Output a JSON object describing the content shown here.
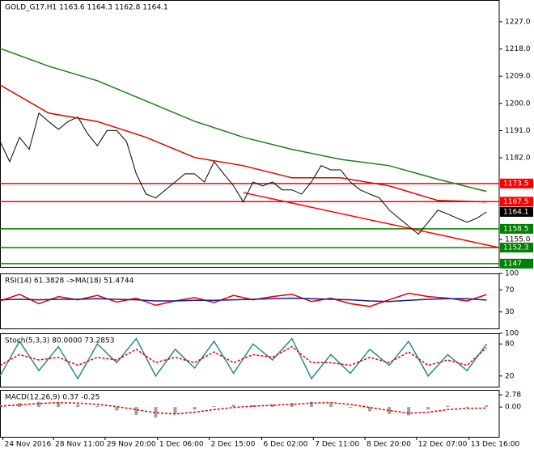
{
  "chart_data": [
    {
      "type": "line",
      "title": "GOLD_G17,H1 1163.6 1164.3 1162.8 1164.1",
      "xlim": [
        0,
        51.3
      ],
      "ylim": [
        1145.9,
        1234.2
      ],
      "yticks": [
        {
          "value": 1227,
          "label": "1227.0"
        },
        {
          "value": 1218,
          "label": "1218.0"
        },
        {
          "value": 1209,
          "label": "1209.0"
        },
        {
          "value": 1200,
          "label": "1200.0"
        },
        {
          "value": 1191,
          "label": "1191.0"
        },
        {
          "value": 1182,
          "label": "1182.0"
        },
        {
          "value": 1155,
          "label": "1155.0"
        }
      ],
      "x": [
        0,
        1,
        2,
        3,
        4,
        5,
        6,
        7,
        8,
        9,
        10,
        11,
        12,
        13,
        14,
        15,
        16,
        17,
        18,
        19,
        20,
        21,
        22,
        23,
        24,
        25,
        26,
        27,
        28,
        29,
        30,
        31,
        32,
        33,
        34,
        35,
        36,
        37,
        38,
        39,
        40,
        41,
        42,
        43,
        44,
        45,
        46,
        47,
        48,
        49,
        50
      ],
      "series": [
        {
          "color": "#000000",
          "values": [
            1187.4,
            1180.7,
            1188.8,
            1184.8,
            1196.8,
            1194,
            1191.4,
            1194,
            1195.5,
            1190,
            1186,
            1191,
            1191,
            1187.4,
            1176.7,
            1170,
            1168.7,
            1171.4,
            1174,
            1176.7,
            1176.7,
            1174,
            1180.7,
            1176.7,
            1172.7,
            1167.4,
            1174,
            1172.7,
            1174,
            1171.4,
            1171.4,
            1170,
            1174,
            1179.4,
            1178,
            1178,
            1174,
            1171.4,
            1170,
            1168.7,
            1164.7,
            1162,
            1159.4,
            1156.7,
            1160.7,
            1164.7,
            1163.4,
            1162,
            1160.7,
            1162,
            1164.1
          ]
        },
        {
          "color": "#1e7d1e",
          "x": [
            0,
            5,
            10,
            15,
            20,
            25,
            30,
            35,
            40,
            45,
            50
          ],
          "values": [
            1218.2,
            1212.3,
            1207.5,
            1200.8,
            1194.1,
            1188.8,
            1184.8,
            1181.5,
            1179.4,
            1174.9,
            1170.9
          ]
        },
        {
          "color": "#e00000",
          "x": [
            0,
            5,
            10,
            15,
            20,
            25,
            30,
            35,
            40,
            45,
            50
          ],
          "values": [
            1206.1,
            1196.8,
            1194,
            1188.8,
            1182.1,
            1179.4,
            1175.4,
            1175.4,
            1172.7,
            1167.9,
            1167.4
          ]
        }
      ],
      "trendline": {
        "color": "#ff0000",
        "x": [
          25,
          51.3
        ],
        "values": [
          1170.5,
          1152.3
        ]
      },
      "levels": [
        {
          "value": 1173.5,
          "color": "#ff0000"
        },
        {
          "value": 1167.5,
          "color": "#ff0000"
        },
        {
          "value": 1158.5,
          "color": "#008000"
        },
        {
          "value": 1152.3,
          "color": "#008000"
        },
        {
          "value": 1147,
          "color": "#008000"
        }
      ],
      "last": 1164.1
    },
    {
      "type": "line",
      "title": "RSI(14) 61.3828 ->MA(18) 51.4744",
      "xlim": [
        0,
        51.3
      ],
      "ylim": [
        0,
        100
      ],
      "yticks": [
        100,
        70,
        30
      ],
      "x": [
        0,
        2,
        4,
        6,
        8,
        10,
        12,
        14,
        16,
        18,
        20,
        22,
        24,
        26,
        28,
        30,
        32,
        34,
        36,
        38,
        40,
        42,
        44,
        46,
        48,
        50
      ],
      "series": [
        {
          "color": "#e00000",
          "values": [
            50,
            62,
            45,
            58,
            52,
            60,
            48,
            55,
            42,
            50,
            56,
            47,
            60,
            52,
            58,
            62,
            49,
            55,
            45,
            40,
            52,
            64,
            58,
            55,
            50,
            61.4
          ]
        },
        {
          "color": "#1a1a8c",
          "values": [
            52,
            53,
            52,
            53,
            53,
            54,
            53,
            52,
            50,
            50,
            51,
            51,
            52,
            53,
            54,
            55,
            54,
            53,
            52,
            50,
            49,
            51,
            53,
            54,
            54,
            51.5
          ]
        }
      ]
    },
    {
      "type": "line",
      "title": "Stoch(5,3,3) 80.0000 73.2853",
      "xlim": [
        0,
        51.3
      ],
      "ylim": [
        0,
        100
      ],
      "yticks": [
        100,
        80,
        20
      ],
      "x": [
        0,
        2,
        4,
        6,
        8,
        10,
        12,
        14,
        16,
        18,
        20,
        22,
        24,
        26,
        28,
        30,
        32,
        34,
        36,
        38,
        40,
        42,
        44,
        46,
        48,
        50
      ],
      "series": [
        {
          "color": "#2a8a8a",
          "values": [
            20,
            85,
            30,
            75,
            15,
            80,
            45,
            90,
            20,
            70,
            35,
            85,
            25,
            80,
            50,
            90,
            15,
            60,
            25,
            70,
            40,
            85,
            20,
            60,
            30,
            80
          ]
        },
        {
          "color": "#e00000",
          "dash": true,
          "values": [
            40,
            60,
            50,
            55,
            40,
            55,
            50,
            70,
            45,
            55,
            45,
            65,
            45,
            60,
            55,
            75,
            45,
            45,
            40,
            55,
            45,
            65,
            40,
            50,
            40,
            73.3
          ]
        }
      ]
    },
    {
      "type": "bar",
      "title": "MACD(12,26,9) 0.37 -0.25",
      "xlim": [
        0,
        51.3
      ],
      "ylim": [
        -6.8,
        3.9
      ],
      "yticks": [
        2.78,
        {
          "value": 0,
          "label": "0.00"
        }
      ],
      "x": [
        0,
        2,
        4,
        6,
        8,
        10,
        12,
        14,
        16,
        18,
        20,
        22,
        24,
        26,
        28,
        30,
        32,
        34,
        36,
        38,
        40,
        42,
        44,
        46,
        48,
        50
      ],
      "series": [
        {
          "type": "bar",
          "color": "#a0a0a0",
          "values": [
            0.5,
            0.9,
            1.2,
            1.0,
            0.6,
            0.2,
            -0.8,
            -1.8,
            -2.4,
            -1.5,
            -0.6,
            0.2,
            0.5,
            0.4,
            0.6,
            0.9,
            1.2,
            0.8,
            -0.2,
            -1.0,
            -1.6,
            -1.9,
            -0.6,
            0.3,
            -0.2,
            0.37
          ]
        },
        {
          "type": "line",
          "color": "#e00000",
          "dash": true,
          "values": [
            0.2,
            0.5,
            0.8,
            1.0,
            0.9,
            0.6,
            0.1,
            -0.6,
            -1.3,
            -1.6,
            -1.2,
            -0.6,
            -0.1,
            0.2,
            0.4,
            0.6,
            0.9,
            1.0,
            0.6,
            -0.1,
            -0.8,
            -1.4,
            -1.2,
            -0.6,
            -0.3,
            -0.25
          ]
        }
      ],
      "xticks": [
        {
          "value": 0.3,
          "label": "24 Nov 2016"
        },
        {
          "value": 5.5,
          "label": "28 Nov 11:00"
        },
        {
          "value": 10.8,
          "label": "29 Nov 20:00"
        },
        {
          "value": 16.2,
          "label": "1 Dec 06:00"
        },
        {
          "value": 21.5,
          "label": "2 Dec 15:00"
        },
        {
          "value": 26.9,
          "label": "6 Dec 02:00"
        },
        {
          "value": 32.2,
          "label": "7 Dec 11:00"
        },
        {
          "value": 37.5,
          "label": "8 Dec 20:00"
        },
        {
          "value": 42.8,
          "label": "12 Dec 07:00"
        },
        {
          "value": 48.2,
          "label": "13 Dec 16:00"
        }
      ]
    }
  ]
}
